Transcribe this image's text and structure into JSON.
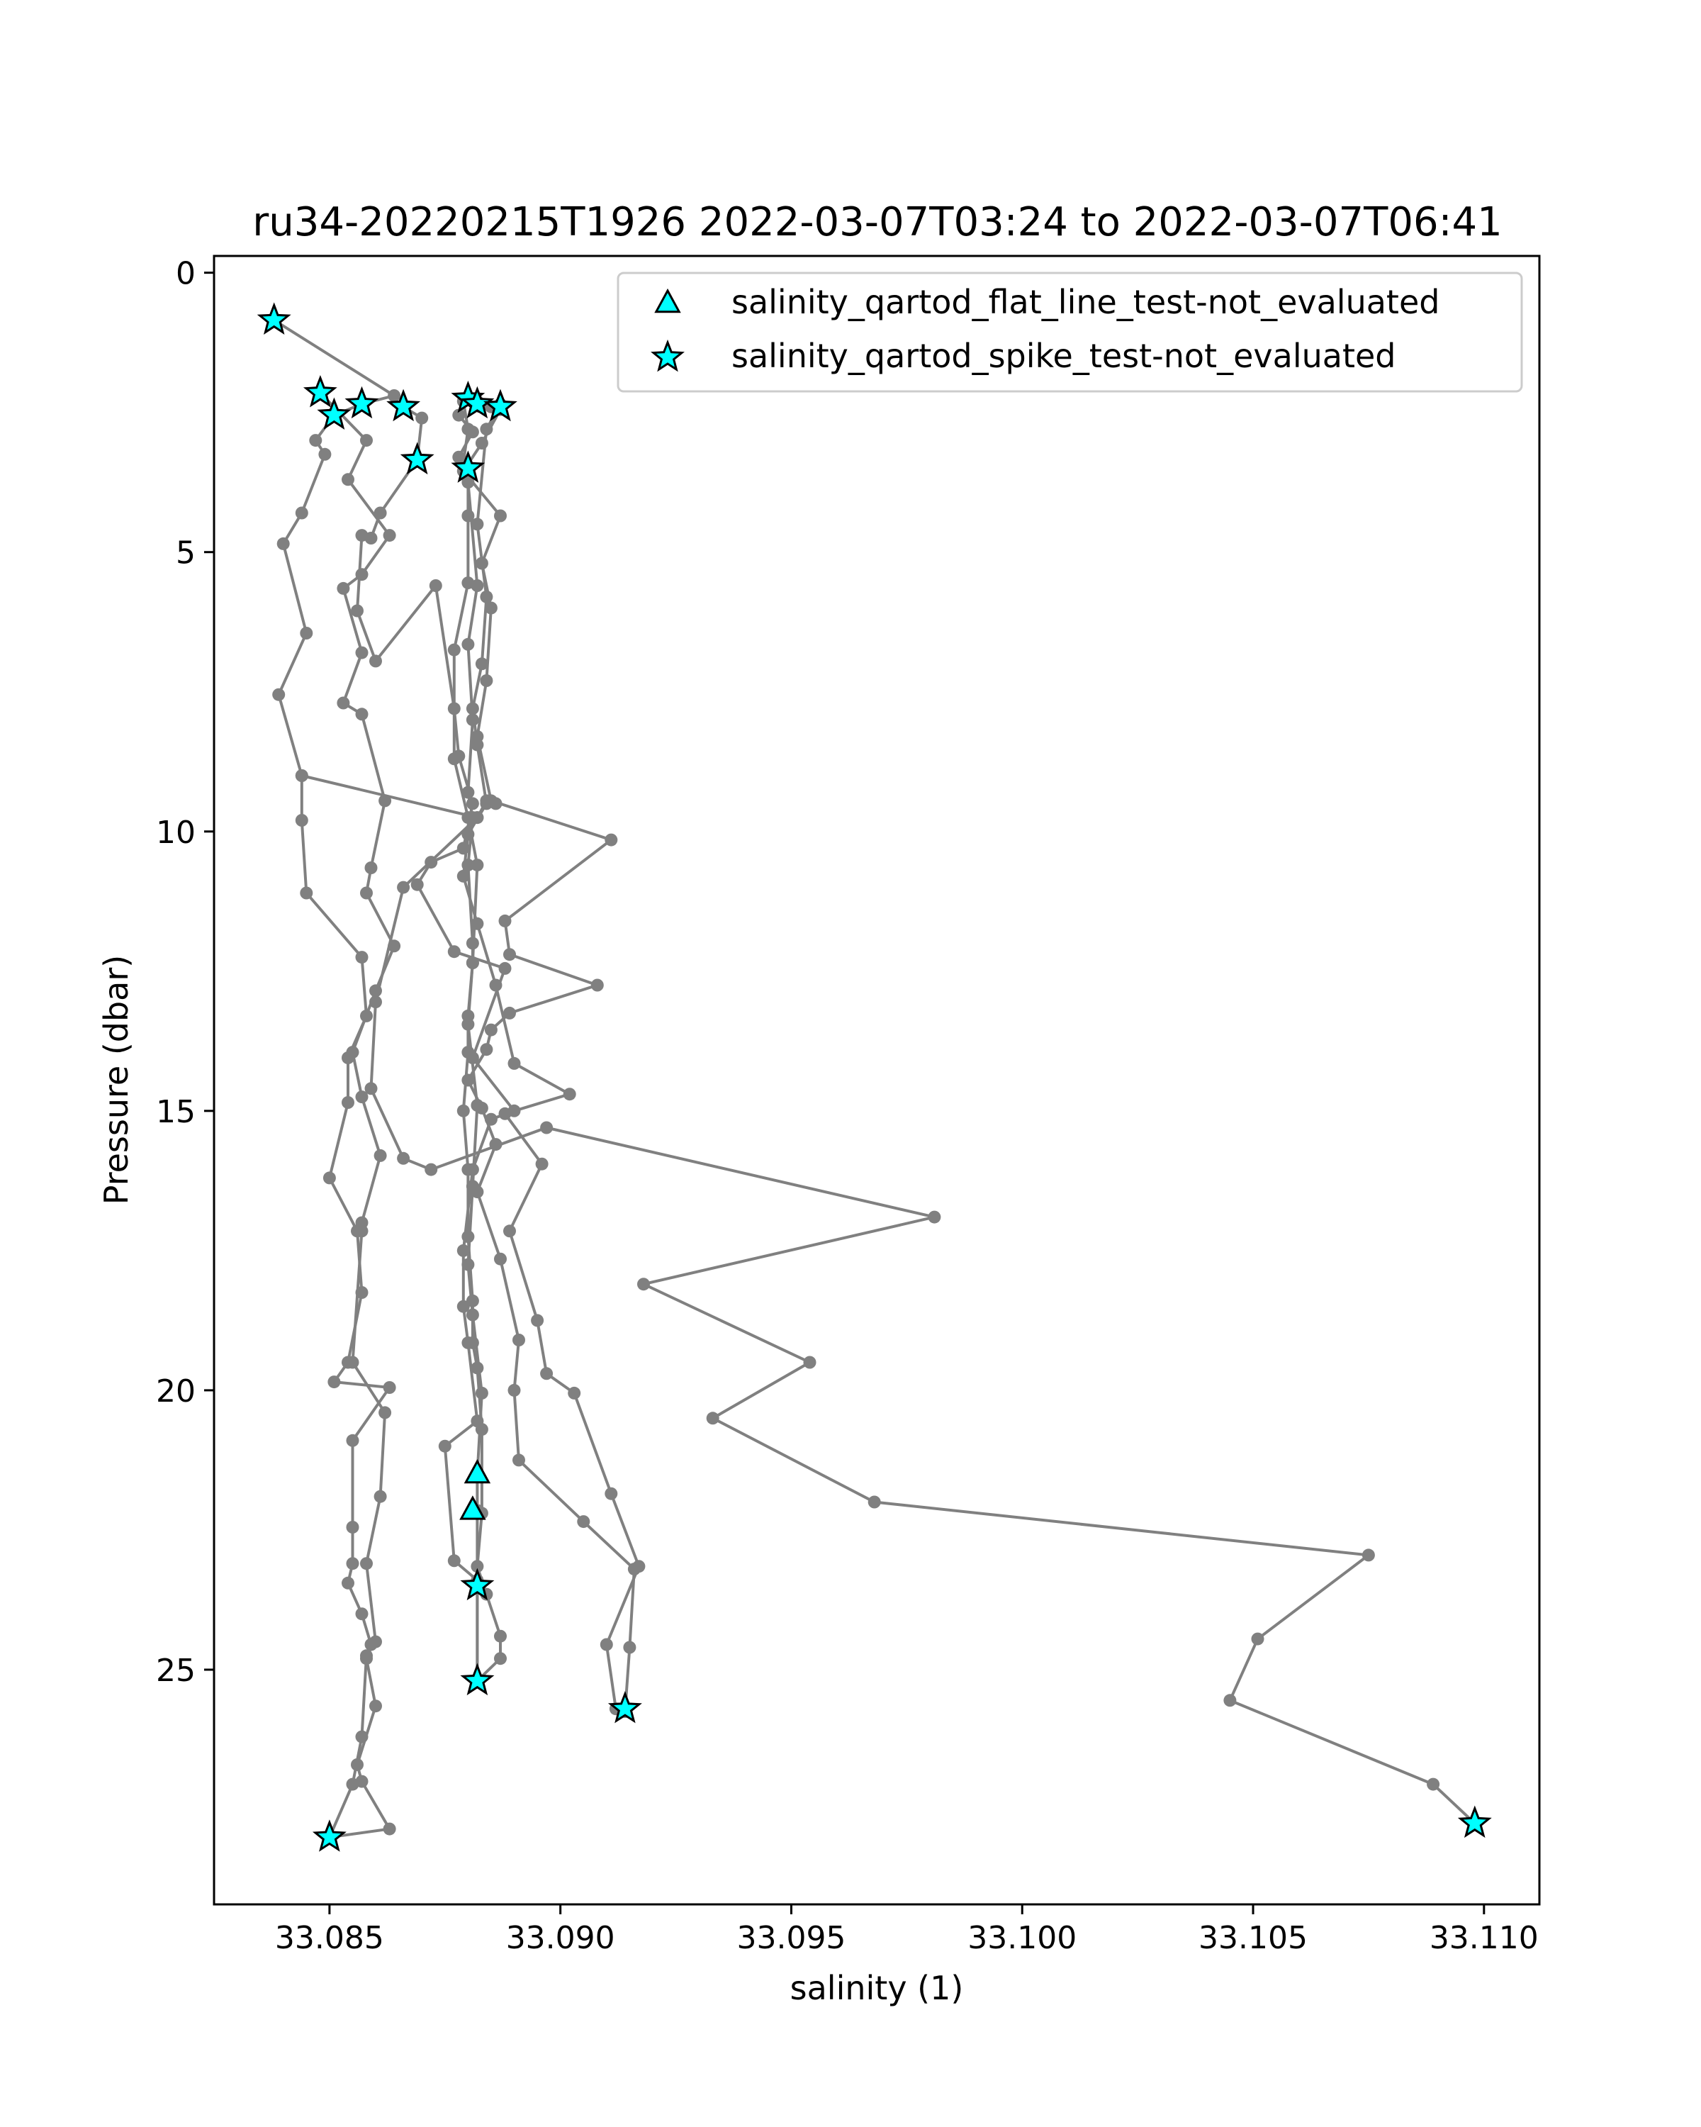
{
  "chart_data": {
    "type": "scatter",
    "title": "ru34-20220215T1926 2022-03-07T03:24 to 2022-03-07T06:41",
    "xlabel": "salinity (1)",
    "ylabel": "Pressure (dbar)",
    "xlim": [
      33.0825,
      33.1112
    ],
    "ylim": [
      29.2,
      -0.3
    ],
    "y_inverted": true,
    "grid": false,
    "legend_position": "top-right",
    "x_ticks": [
      "33.085",
      "33.090",
      "33.095",
      "33.100",
      "33.105",
      "33.110"
    ],
    "y_ticks": [
      "0",
      "5",
      "10",
      "15",
      "20",
      "25"
    ],
    "colors": {
      "line": "#808080",
      "marker_fill": "#00ffff",
      "marker_edge": "#000000"
    },
    "profiles": [
      {
        "points": [
          [
            33.0838,
            0.85
          ],
          [
            33.0864,
            2.2
          ],
          [
            33.0857,
            2.35
          ],
          [
            33.0851,
            2.55
          ],
          [
            33.0847,
            3.0
          ],
          [
            33.0849,
            3.25
          ],
          [
            33.0844,
            4.3
          ],
          [
            33.084,
            4.85
          ],
          [
            33.0845,
            6.45
          ],
          [
            33.0839,
            7.55
          ],
          [
            33.0844,
            9.0
          ],
          [
            33.0844,
            9.8
          ],
          [
            33.0845,
            11.1
          ],
          [
            33.0857,
            12.25
          ],
          [
            33.0858,
            13.3
          ],
          [
            33.0854,
            14.05
          ],
          [
            33.0854,
            14.85
          ],
          [
            33.085,
            16.2
          ],
          [
            33.0856,
            17.15
          ],
          [
            33.0857,
            18.25
          ],
          [
            33.0854,
            19.5
          ],
          [
            33.0851,
            19.85
          ],
          [
            33.0863,
            19.95
          ],
          [
            33.0855,
            20.9
          ],
          [
            33.0855,
            22.45
          ],
          [
            33.0855,
            23.1
          ],
          [
            33.0854,
            23.45
          ],
          [
            33.0857,
            24.0
          ],
          [
            33.0859,
            24.55
          ],
          [
            33.0858,
            24.8
          ],
          [
            33.086,
            25.65
          ],
          [
            33.0856,
            26.7
          ],
          [
            33.0857,
            27.0
          ],
          [
            33.0863,
            27.85
          ],
          [
            33.085,
            28.0
          ]
        ]
      },
      {
        "points": [
          [
            33.0848,
            2.15
          ],
          [
            33.0858,
            3.0
          ],
          [
            33.0854,
            3.7
          ],
          [
            33.0863,
            4.7
          ],
          [
            33.0857,
            5.4
          ],
          [
            33.0853,
            5.65
          ],
          [
            33.0857,
            6.8
          ],
          [
            33.0853,
            7.7
          ],
          [
            33.0857,
            7.9
          ],
          [
            33.0862,
            9.45
          ],
          [
            33.0859,
            10.65
          ],
          [
            33.0858,
            11.1
          ],
          [
            33.0864,
            12.05
          ],
          [
            33.086,
            12.85
          ],
          [
            33.0855,
            13.95
          ],
          [
            33.0857,
            14.75
          ],
          [
            33.0861,
            15.8
          ],
          [
            33.0857,
            17.0
          ],
          [
            33.0857,
            17.15
          ],
          [
            33.0855,
            19.5
          ],
          [
            33.0862,
            20.4
          ],
          [
            33.0861,
            21.9
          ],
          [
            33.0858,
            23.1
          ],
          [
            33.086,
            24.5
          ],
          [
            33.0858,
            24.75
          ],
          [
            33.0857,
            26.2
          ],
          [
            33.0855,
            27.05
          ],
          [
            33.085,
            28.0
          ]
        ]
      },
      {
        "points": [
          [
            33.0866,
            2.4
          ],
          [
            33.087,
            2.6
          ],
          [
            33.0869,
            3.35
          ],
          [
            33.0861,
            4.3
          ],
          [
            33.0859,
            4.75
          ],
          [
            33.0857,
            4.7
          ],
          [
            33.0856,
            6.05
          ],
          [
            33.086,
            6.95
          ],
          [
            33.0873,
            5.6
          ],
          [
            33.0877,
            7.8
          ],
          [
            33.0878,
            8.65
          ],
          [
            33.0881,
            9.5
          ],
          [
            33.0879,
            10.3
          ],
          [
            33.0872,
            10.55
          ],
          [
            33.0869,
            10.95
          ],
          [
            33.0877,
            12.15
          ],
          [
            33.0888,
            12.45
          ],
          [
            33.0881,
            14.05
          ],
          [
            33.089,
            15.0
          ],
          [
            33.0885,
            15.15
          ],
          [
            33.0881,
            16.05
          ],
          [
            33.0879,
            17.5
          ],
          [
            33.0879,
            18.5
          ],
          [
            33.088,
            19.15
          ],
          [
            33.0882,
            20.55
          ],
          [
            33.0875,
            21.0
          ],
          [
            33.0877,
            23.05
          ],
          [
            33.0882,
            23.4
          ],
          [
            33.0882,
            25.2
          ]
        ]
      },
      {
        "points": [
          [
            33.088,
            2.25
          ],
          [
            33.0878,
            2.55
          ],
          [
            33.0881,
            2.85
          ],
          [
            33.0878,
            3.3
          ],
          [
            33.088,
            3.5
          ],
          [
            33.088,
            4.35
          ],
          [
            33.088,
            5.55
          ],
          [
            33.0877,
            6.75
          ],
          [
            33.0877,
            8.7
          ],
          [
            33.088,
            9.75
          ],
          [
            33.0882,
            10.6
          ],
          [
            33.0881,
            12.35
          ],
          [
            33.088,
            13.45
          ],
          [
            33.0882,
            14.9
          ],
          [
            33.0881,
            16.35
          ],
          [
            33.088,
            17.75
          ],
          [
            33.0881,
            18.65
          ],
          [
            33.0883,
            20.05
          ],
          [
            33.0882,
            21.5
          ],
          [
            33.0882,
            22.15
          ],
          [
            33.0882,
            23.5
          ],
          [
            33.0882,
            25.2
          ]
        ]
      },
      {
        "points": [
          [
            33.0882,
            2.3
          ],
          [
            33.0879,
            2.3
          ],
          [
            33.088,
            2.8
          ],
          [
            33.0879,
            3.4
          ],
          [
            33.088,
            3.75
          ],
          [
            33.0882,
            5.6
          ],
          [
            33.088,
            6.65
          ],
          [
            33.0881,
            8.0
          ],
          [
            33.088,
            9.3
          ],
          [
            33.0881,
            9.75
          ],
          [
            33.088,
            10.6
          ],
          [
            33.0881,
            12.0
          ],
          [
            33.0881,
            12.35
          ],
          [
            33.088,
            13.3
          ],
          [
            33.088,
            13.95
          ],
          [
            33.0879,
            15.0
          ],
          [
            33.088,
            16.05
          ],
          [
            33.088,
            17.25
          ],
          [
            33.0881,
            18.4
          ],
          [
            33.0881,
            19.15
          ],
          [
            33.0882,
            19.6
          ],
          [
            33.0883,
            20.7
          ],
          [
            33.0883,
            22.2
          ],
          [
            33.0882,
            23.15
          ],
          [
            33.0884,
            23.65
          ],
          [
            33.0887,
            24.4
          ],
          [
            33.0887,
            24.8
          ],
          [
            33.0882,
            25.2
          ]
        ]
      },
      {
        "points": [
          [
            33.0885,
            2.4
          ],
          [
            33.0887,
            2.45
          ],
          [
            33.0883,
            3.05
          ],
          [
            33.0879,
            3.55
          ],
          [
            33.0887,
            4.35
          ],
          [
            33.0883,
            5.2
          ],
          [
            33.0885,
            6.0
          ],
          [
            33.0884,
            7.3
          ],
          [
            33.0882,
            8.3
          ],
          [
            33.0885,
            9.45
          ],
          [
            33.0911,
            10.15
          ],
          [
            33.0888,
            11.6
          ],
          [
            33.0889,
            12.2
          ],
          [
            33.0908,
            12.75
          ],
          [
            33.0889,
            13.25
          ],
          [
            33.0885,
            13.55
          ],
          [
            33.0884,
            13.9
          ],
          [
            33.088,
            14.45
          ],
          [
            33.0883,
            14.95
          ],
          [
            33.0886,
            15.6
          ],
          [
            33.0882,
            16.45
          ],
          [
            33.0887,
            17.65
          ],
          [
            33.0891,
            19.1
          ],
          [
            33.089,
            20.0
          ],
          [
            33.0891,
            21.25
          ],
          [
            33.0905,
            22.35
          ],
          [
            33.0916,
            23.2
          ],
          [
            33.0915,
            24.6
          ],
          [
            33.0914,
            25.75
          ]
        ]
      },
      {
        "points": [
          [
            33.0887,
            2.35
          ],
          [
            33.0884,
            2.8
          ],
          [
            33.0882,
            4.5
          ],
          [
            33.0884,
            5.8
          ],
          [
            33.0883,
            7.0
          ],
          [
            33.0881,
            7.8
          ],
          [
            33.0882,
            8.45
          ],
          [
            33.0884,
            9.5
          ],
          [
            33.088,
            10.05
          ],
          [
            33.0879,
            10.8
          ],
          [
            33.0882,
            11.65
          ],
          [
            33.0886,
            12.75
          ],
          [
            33.089,
            14.15
          ],
          [
            33.0902,
            14.7
          ],
          [
            33.0888,
            15.05
          ],
          [
            33.0896,
            15.95
          ],
          [
            33.0889,
            17.15
          ],
          [
            33.0895,
            18.75
          ],
          [
            33.0897,
            19.7
          ],
          [
            33.0903,
            20.05
          ],
          [
            33.0911,
            21.85
          ],
          [
            33.0917,
            23.15
          ],
          [
            33.091,
            24.55
          ],
          [
            33.0912,
            25.7
          ]
        ]
      },
      {
        "points": [
          [
            33.0886,
            9.5
          ],
          [
            33.0884,
            9.45
          ],
          [
            33.0882,
            9.75
          ],
          [
            33.0866,
            11.0
          ],
          [
            33.086,
            13.05
          ],
          [
            33.0859,
            14.6
          ],
          [
            33.0866,
            15.85
          ],
          [
            33.0872,
            16.05
          ],
          [
            33.0897,
            15.3
          ],
          [
            33.0981,
            16.9
          ],
          [
            33.0918,
            18.1
          ],
          [
            33.0954,
            19.5
          ],
          [
            33.0933,
            20.5
          ],
          [
            33.0968,
            22.0
          ],
          [
            33.1075,
            22.95
          ],
          [
            33.1051,
            24.45
          ],
          [
            33.1045,
            25.55
          ],
          [
            33.1089,
            27.05
          ],
          [
            33.1098,
            27.75
          ]
        ]
      },
      {
        "points": [
          [
            33.0844,
            9.0
          ],
          [
            33.0882,
            9.75
          ]
        ]
      }
    ],
    "series": [
      {
        "name": "salinity_qartod_flat_line_test-not_evaluated",
        "marker": "triangle",
        "points": [
          [
            33.0882,
            21.5
          ],
          [
            33.0881,
            22.15
          ]
        ]
      },
      {
        "name": "salinity_qartod_spike_test-not_evaluated",
        "marker": "star",
        "points": [
          [
            33.0838,
            0.85
          ],
          [
            33.0848,
            2.15
          ],
          [
            33.0857,
            2.35
          ],
          [
            33.0851,
            2.55
          ],
          [
            33.0866,
            2.4
          ],
          [
            33.088,
            2.25
          ],
          [
            33.0882,
            2.35
          ],
          [
            33.0887,
            2.4
          ],
          [
            33.0869,
            3.35
          ],
          [
            33.088,
            3.5
          ],
          [
            33.0882,
            23.5
          ],
          [
            33.0882,
            25.2
          ],
          [
            33.0914,
            25.7
          ],
          [
            33.085,
            28.0
          ],
          [
            33.1098,
            27.75
          ]
        ]
      }
    ]
  }
}
